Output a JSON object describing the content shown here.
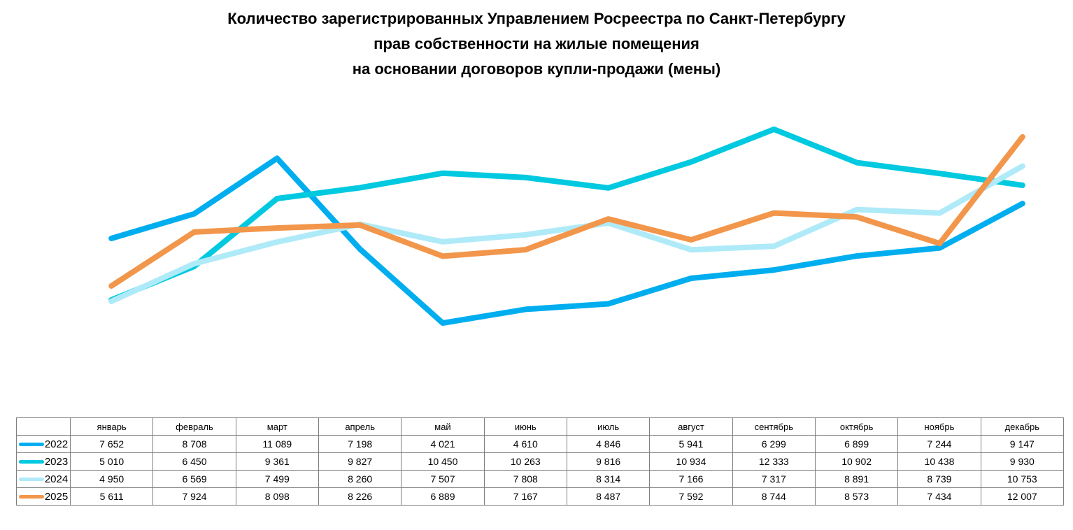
{
  "title": {
    "lines": [
      "Количество зарегистрированных Управлением Росреестра по Санкт-Петербургу",
      "прав собственности на жилые помещения",
      "на основании договоров купли-продажи (мены)"
    ]
  },
  "chart_data": {
    "type": "line",
    "title": "Количество зарегистрированных Управлением Росреестра по Санкт-Петербургу прав собственности на жилые помещения на основании договоров купли-продажи (мены)",
    "categories": [
      "январь",
      "февраль",
      "март",
      "апрель",
      "май",
      "июнь",
      "июль",
      "август",
      "сентябрь",
      "октябрь",
      "ноябрь",
      "декабрь"
    ],
    "series": [
      {
        "name": "2022",
        "color": "#00AEEF",
        "values": [
          7652,
          8708,
          11089,
          7198,
          4021,
          4610,
          4846,
          5941,
          6299,
          6899,
          7244,
          9147
        ]
      },
      {
        "name": "2023",
        "color": "#00C9E0",
        "values": [
          5010,
          6450,
          9361,
          9827,
          10450,
          10263,
          9816,
          10934,
          12333,
          10902,
          10438,
          9930
        ]
      },
      {
        "name": "2024",
        "color": "#AFEAF8",
        "values": [
          4950,
          6569,
          7499,
          8260,
          7507,
          7808,
          8314,
          7166,
          7317,
          8891,
          8739,
          10753
        ]
      },
      {
        "name": "2025",
        "color": "#F2964B",
        "values": [
          5611,
          7924,
          8098,
          8226,
          6889,
          7167,
          8487,
          7592,
          8744,
          8573,
          7434,
          12007
        ]
      }
    ],
    "xlabel": "",
    "ylabel": "",
    "ylim": [
      3000,
      13000
    ],
    "grid": false,
    "axes_visible": false,
    "legend_position": "table-left-column",
    "value_format": "thousands separated by space"
  },
  "table": {
    "corner_label": ""
  }
}
